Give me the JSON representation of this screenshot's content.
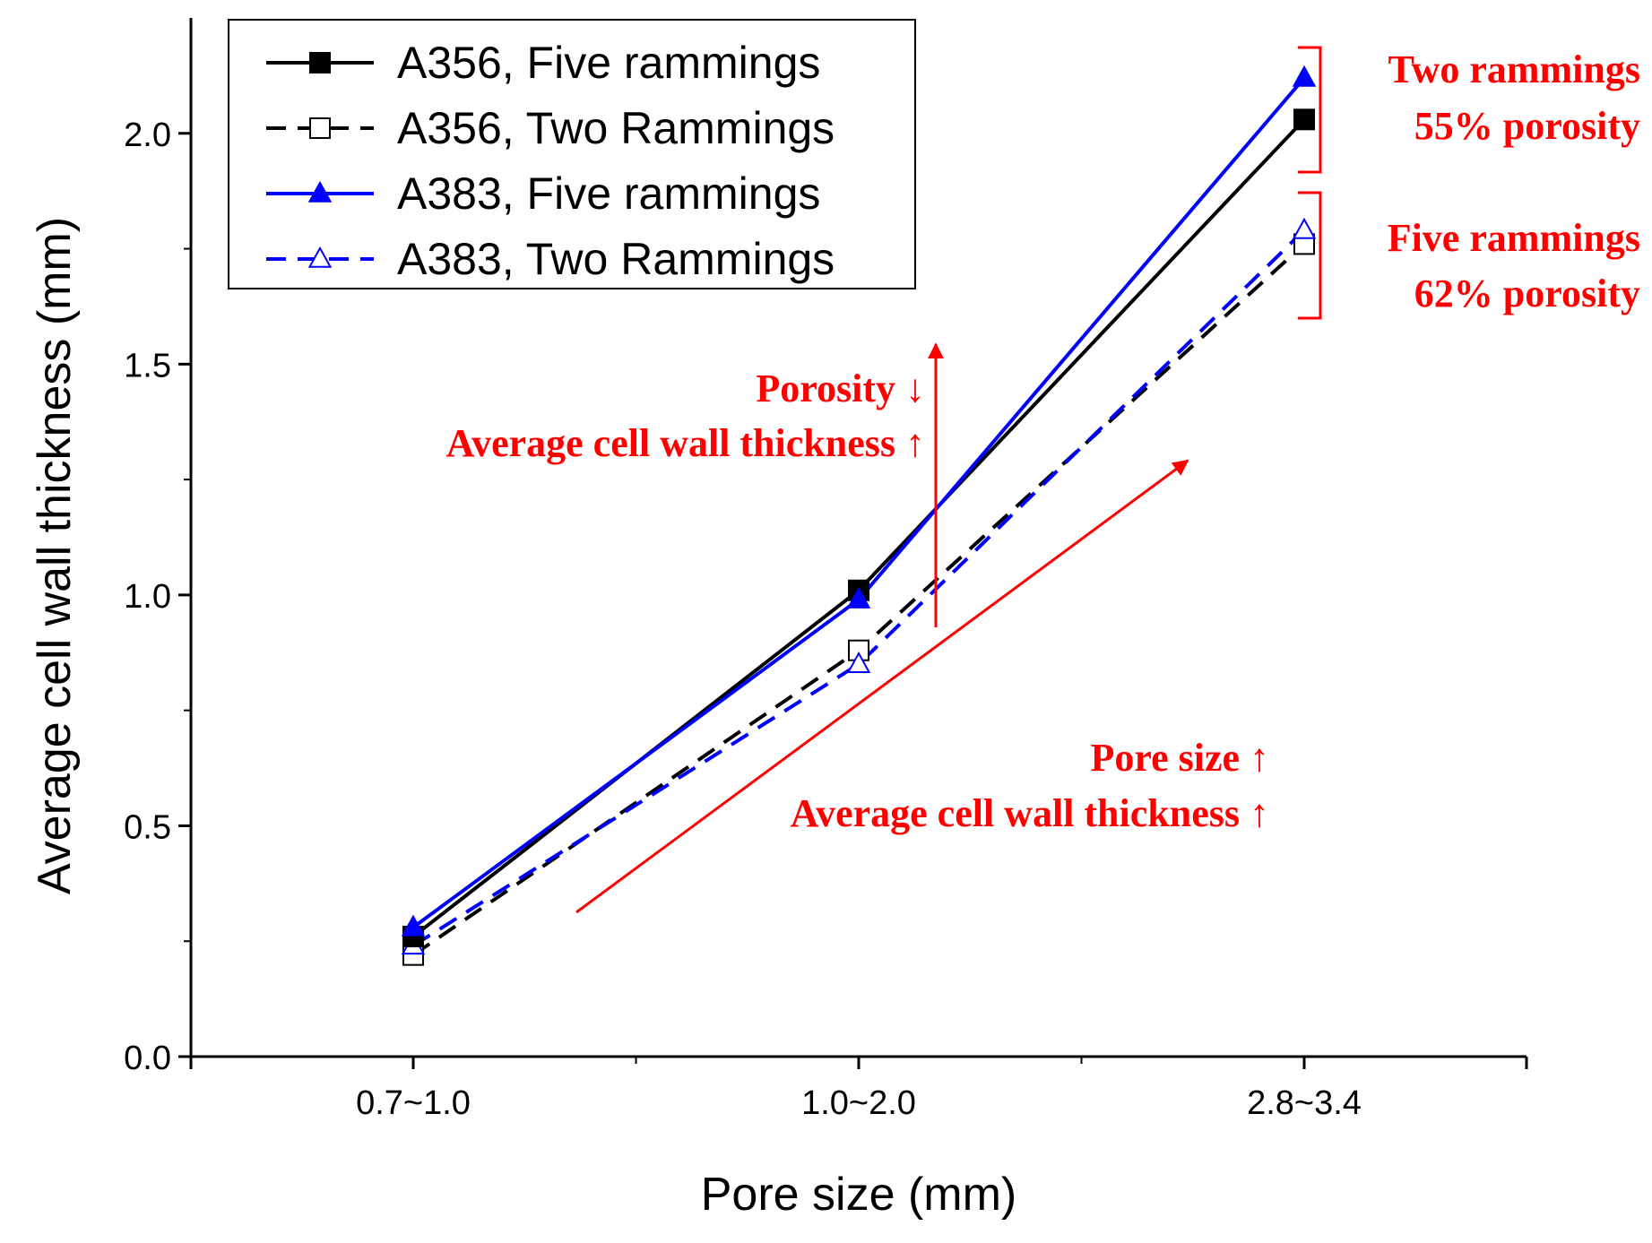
{
  "chart_data": {
    "type": "line",
    "title": "",
    "xlabel": "Pore size (mm)",
    "ylabel": "Average cell wall thickness (mm)",
    "categories": [
      "0.7~1.0",
      "1.0~2.0",
      "2.8~3.4"
    ],
    "ylim": [
      0.0,
      2.25
    ],
    "yticks": [
      0.0,
      0.5,
      1.0,
      1.5,
      2.0
    ],
    "ytick_labels": [
      "0.0",
      "0.5",
      "1.0",
      "1.5",
      "2.0"
    ],
    "grid": false,
    "legend_position": "top-left",
    "series": [
      {
        "name": "A356, Five rammings",
        "values": [
          0.26,
          1.01,
          2.03
        ],
        "color": "#000000",
        "dash": "solid",
        "marker": "filled-square"
      },
      {
        "name": "A356, Two Rammings",
        "values": [
          0.22,
          0.88,
          1.76
        ],
        "color": "#000000",
        "dash": "dashed",
        "marker": "open-square"
      },
      {
        "name": "A383, Five rammings",
        "values": [
          0.28,
          0.99,
          2.12
        ],
        "color": "#0000ff",
        "dash": "solid",
        "marker": "filled-triangle"
      },
      {
        "name": "A383, Two Rammings",
        "values": [
          0.24,
          0.85,
          1.79
        ],
        "color": "#0000ff",
        "dash": "dashed",
        "marker": "open-triangle"
      }
    ],
    "annotations": {
      "porosity_line1": "Porosity ↓",
      "porosity_line2": "Average cell wall thickness ↑",
      "pore_line1": "Pore size ↑",
      "pore_line2": "Average cell wall thickness ↑",
      "two_line1": "Two rammings",
      "two_line2": "55% porosity",
      "five_line1": "Five rammings",
      "five_line2": "62% porosity"
    },
    "annotation_color": "#ff0000"
  }
}
